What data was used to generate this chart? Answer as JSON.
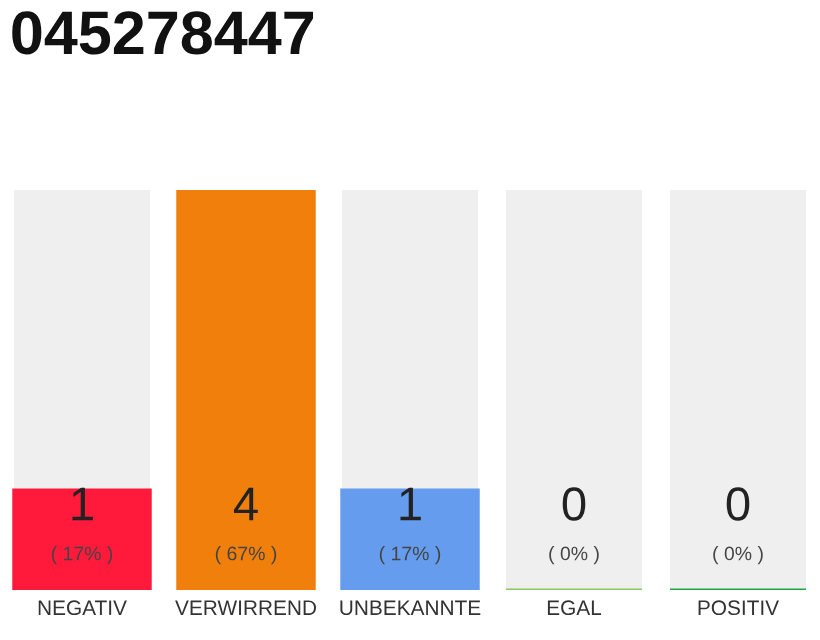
{
  "chart_data": {
    "type": "bar",
    "title": "045278447",
    "categories": [
      "NEGATIV",
      "VERWIRREND",
      "UNBEKANNTE",
      "EGAL",
      "POSITIV"
    ],
    "values": [
      1,
      4,
      1,
      0,
      0
    ],
    "colors": [
      "#ff1a3c",
      "#f07f0c",
      "#659ced",
      "#8bc862",
      "#1ea84a"
    ],
    "value_labels": [
      "1",
      "4",
      "1",
      "0",
      "0"
    ],
    "annotations": [
      "( 17% )",
      "( 67% )",
      "( 17% )",
      "( 0% )",
      "( 0% )"
    ],
    "grid": false,
    "legend": false
  }
}
